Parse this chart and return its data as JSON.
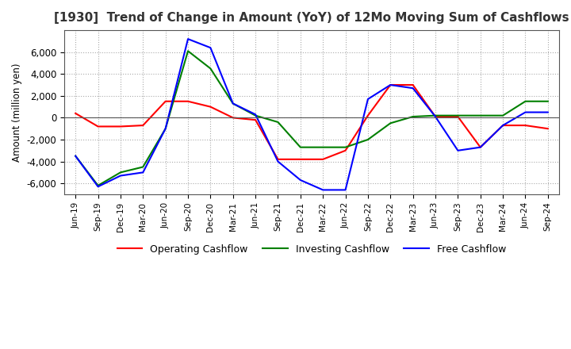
{
  "title": "[1930]  Trend of Change in Amount (YoY) of 12Mo Moving Sum of Cashflows",
  "ylabel": "Amount (million yen)",
  "x_labels": [
    "Jun-19",
    "Sep-19",
    "Dec-19",
    "Mar-20",
    "Jun-20",
    "Sep-20",
    "Dec-20",
    "Mar-21",
    "Jun-21",
    "Sep-21",
    "Dec-21",
    "Mar-22",
    "Jun-22",
    "Sep-22",
    "Dec-22",
    "Mar-23",
    "Jun-23",
    "Sep-23",
    "Dec-23",
    "Mar-24",
    "Jun-24",
    "Sep-24"
  ],
  "operating_cashflow": [
    400,
    -800,
    -800,
    -700,
    1500,
    1500,
    1000,
    0,
    -200,
    -3800,
    -3800,
    -3800,
    -3000,
    200,
    3000,
    3000,
    100,
    100,
    -2700,
    -700,
    -700,
    -1000
  ],
  "investing_cashflow": [
    -3500,
    -6200,
    -5000,
    -4500,
    -1000,
    6100,
    4500,
    1300,
    200,
    -400,
    -2700,
    -2700,
    -2700,
    -2000,
    -500,
    100,
    200,
    200,
    200,
    200,
    1500,
    1500
  ],
  "free_cashflow": [
    -3500,
    -6300,
    -5300,
    -5000,
    -1000,
    7200,
    6400,
    1300,
    300,
    -4000,
    -5700,
    -6600,
    -6600,
    1700,
    3000,
    2700,
    100,
    -3000,
    -2700,
    -700,
    500,
    500
  ],
  "operating_color": "#ff0000",
  "investing_color": "#008000",
  "free_color": "#0000ff",
  "ylim": [
    -7000,
    8000
  ],
  "yticks": [
    -6000,
    -4000,
    -2000,
    0,
    2000,
    4000,
    6000
  ],
  "grid_color": "#aaaaaa",
  "background_color": "#ffffff",
  "title_fontsize": 11,
  "title_color": "#333333",
  "legend_labels": [
    "Operating Cashflow",
    "Investing Cashflow",
    "Free Cashflow"
  ]
}
